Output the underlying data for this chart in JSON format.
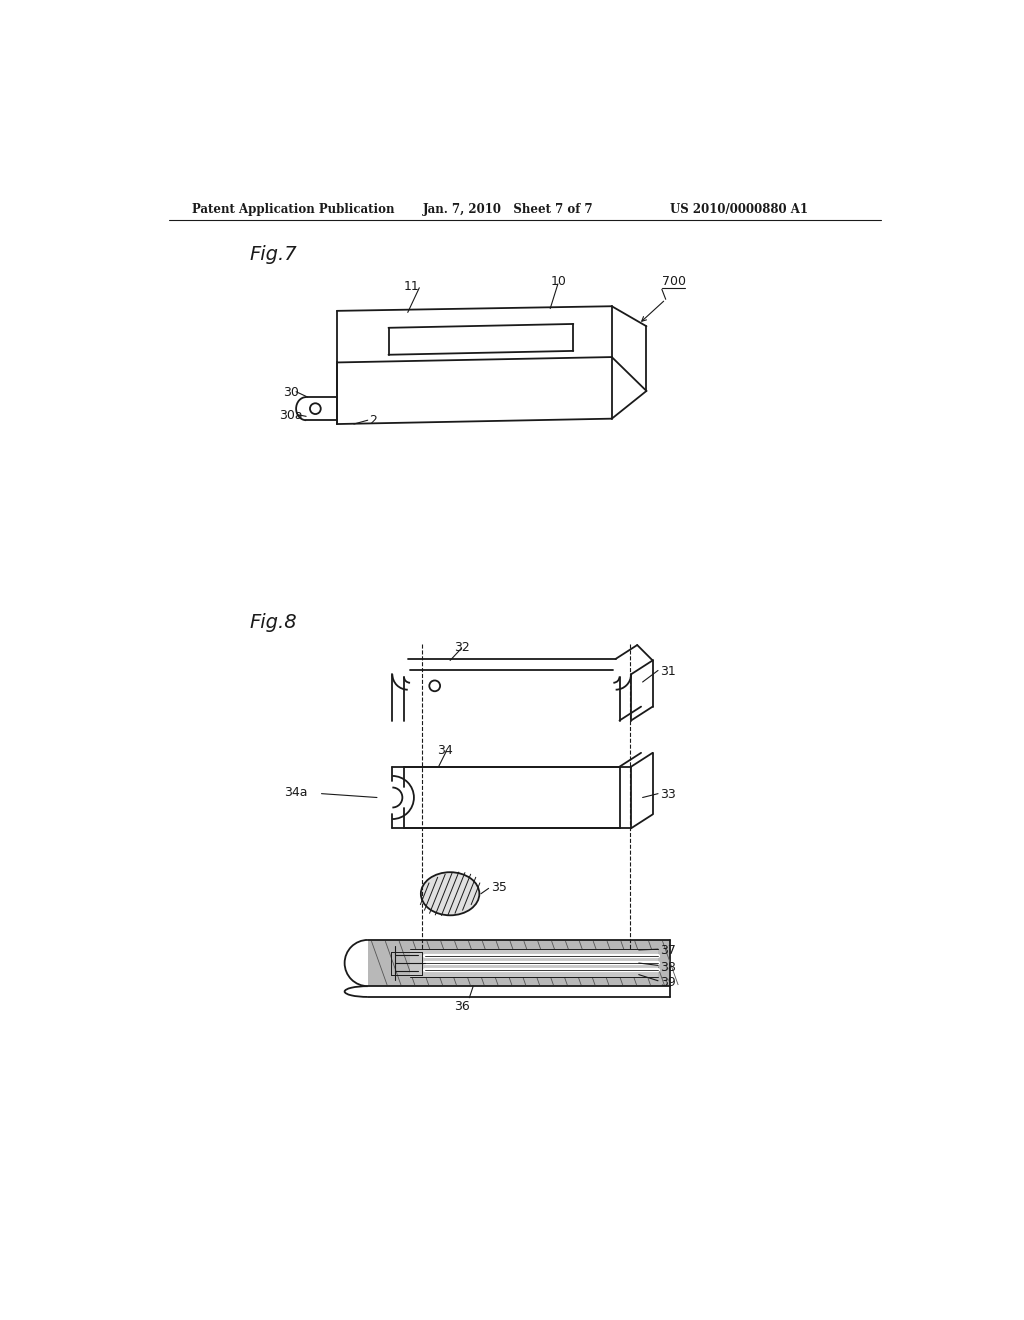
{
  "bg_color": "#ffffff",
  "line_color": "#1a1a1a",
  "header_left": "Patent Application Publication",
  "header_mid": "Jan. 7, 2010   Sheet 7 of 7",
  "header_right": "US 2010/0000880 A1",
  "fig7_label": "Fig.7",
  "fig8_label": "Fig.8"
}
